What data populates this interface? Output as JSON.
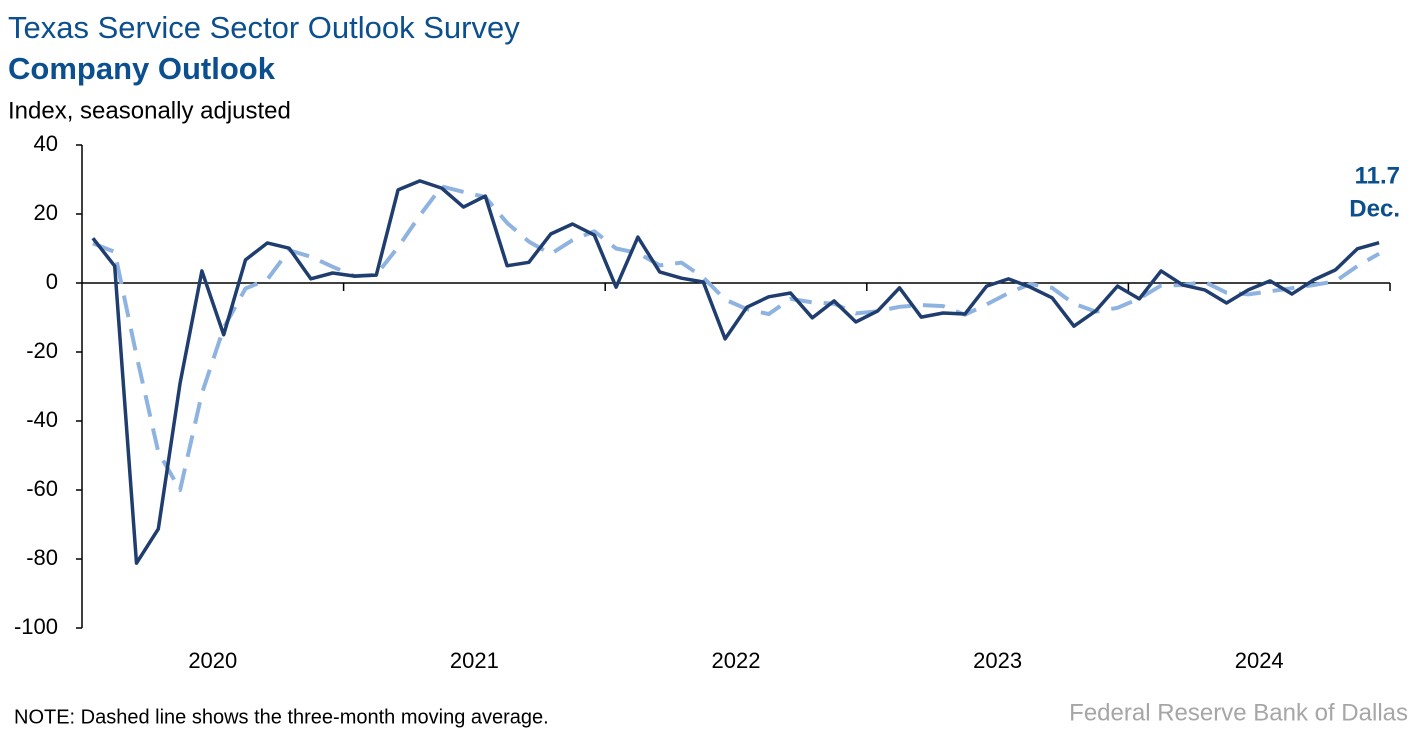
{
  "chart_data": {
    "type": "line",
    "title": "Texas Service Sector Outlook Survey",
    "subtitle": "Company Outlook",
    "y_label": "Index, seasonally adjusted",
    "note": "NOTE: Dashed line shows the three-month moving average.",
    "source": "Federal Reserve Bank of Dallas",
    "year_labels": [
      "2020",
      "2021",
      "2022",
      "2023",
      "2024"
    ],
    "xlim": [
      2020,
      2025
    ],
    "xticks": [
      2021,
      2022,
      2023,
      2024,
      2025
    ],
    "ylim": [
      -100,
      40
    ],
    "yticks": [
      -100,
      -80,
      -60,
      -40,
      -20,
      0,
      20,
      40
    ],
    "annotation": {
      "text": "11.7",
      "period": "Dec."
    },
    "series": [
      {
        "color": "#1f3d6e",
        "dash": false,
        "values": [
          13,
          4.9,
          -81.2,
          -71.3,
          -29,
          3.5,
          -15,
          6.7,
          11.6,
          10.1,
          1.2,
          2.9,
          2,
          2.3,
          27,
          29.6,
          27.5,
          22,
          25.2,
          5,
          6,
          14.2,
          17.1,
          13.9,
          -1.2,
          13.3,
          3.2,
          1.4,
          0.3,
          -16.2,
          -7,
          -4,
          -2.9,
          -10.1,
          -5.2,
          -11.3,
          -8.1,
          -1.4,
          -9.9,
          -8.7,
          -9,
          -0.9,
          1.2,
          -1.2,
          -4.3,
          -12.5,
          -8.1,
          -0.9,
          -4.6,
          3.5,
          -0.6,
          -2,
          -5.8,
          -2,
          0.6,
          -3.2,
          0.9,
          3.8,
          9.9,
          11.7
        ]
      },
      {
        "color": "#8fb3e0",
        "dash": true,
        "values": [
          11.5,
          9,
          -21,
          -49,
          -60,
          -32,
          -13,
          -1.6,
          1,
          9.5,
          7.6,
          4.7,
          2,
          2.4,
          10.4,
          19.6,
          28,
          26.4,
          24.9,
          17.4,
          12,
          8.4,
          12.4,
          15,
          10,
          8.7,
          5.1,
          5.9,
          1.6,
          -4.8,
          -7.6,
          -9,
          -4.6,
          -5.6,
          -6,
          -8.8,
          -8.2,
          -6.9,
          -6.4,
          -6.7,
          -9.2,
          -6.2,
          -2.9,
          -0.3,
          -1.4,
          -6,
          -8.3,
          -7.2,
          -4.5,
          -0.7,
          -0.6,
          0.3,
          -2.8,
          -3.3,
          -2.4,
          -1.5,
          -0.6,
          0.5,
          4.9,
          8.5
        ]
      }
    ]
  }
}
